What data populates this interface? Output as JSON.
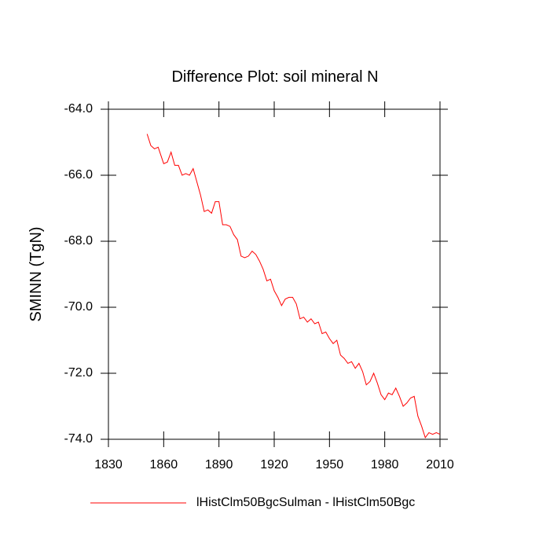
{
  "chart_data": {
    "type": "line",
    "title": "Difference Plot: soil mineral N",
    "y_label": "SMINN  (TgN)",
    "x": [
      1851,
      1853,
      1855,
      1857,
      1860,
      1862,
      1864,
      1866,
      1868,
      1870,
      1872,
      1874,
      1876,
      1878,
      1880,
      1882,
      1884,
      1886,
      1888,
      1890,
      1892,
      1894,
      1896,
      1898,
      1900,
      1902,
      1904,
      1906,
      1908,
      1910,
      1912,
      1914,
      1916,
      1918,
      1920,
      1922,
      1924,
      1926,
      1928,
      1930,
      1932,
      1934,
      1936,
      1938,
      1940,
      1942,
      1944,
      1946,
      1948,
      1950,
      1952,
      1954,
      1956,
      1958,
      1960,
      1962,
      1964,
      1966,
      1968,
      1970,
      1972,
      1974,
      1976,
      1978,
      1980,
      1982,
      1984,
      1986,
      1988,
      1990,
      1992,
      1994,
      1996,
      1998,
      2000,
      2002,
      2004,
      2006,
      2008,
      2010
    ],
    "series": [
      {
        "name": "lHistClm50BgcSulman - lHistClm50Bgc",
        "color": "#ff0000",
        "values": [
          -64.75,
          -65.1,
          -65.2,
          -65.15,
          -65.65,
          -65.6,
          -65.3,
          -65.7,
          -65.7,
          -66.0,
          -65.95,
          -66.0,
          -65.8,
          -66.2,
          -66.6,
          -67.1,
          -67.05,
          -67.15,
          -66.8,
          -66.8,
          -67.5,
          -67.5,
          -67.55,
          -67.8,
          -67.95,
          -68.45,
          -68.5,
          -68.45,
          -68.3,
          -68.4,
          -68.6,
          -68.85,
          -69.2,
          -69.15,
          -69.5,
          -69.7,
          -69.95,
          -69.75,
          -69.7,
          -69.7,
          -69.9,
          -70.35,
          -70.3,
          -70.45,
          -70.35,
          -70.5,
          -70.45,
          -70.8,
          -70.75,
          -70.95,
          -71.1,
          -71.0,
          -71.45,
          -71.55,
          -71.7,
          -71.65,
          -71.85,
          -71.7,
          -71.95,
          -72.35,
          -72.25,
          -72.0,
          -72.3,
          -72.65,
          -72.8,
          -72.6,
          -72.65,
          -72.45,
          -72.7,
          -73.0,
          -72.9,
          -72.75,
          -72.7,
          -73.3,
          -73.6,
          -73.95,
          -73.8,
          -73.85,
          -73.8,
          -73.85
        ]
      }
    ],
    "xlim": [
      1830,
      2010
    ],
    "xticks": [
      1830,
      1860,
      1890,
      1920,
      1950,
      1980,
      2010
    ],
    "ylim": [
      -74,
      -64
    ],
    "yticks": [
      {
        "value": -74,
        "label": "-74.0"
      },
      {
        "value": -72,
        "label": "-72.0"
      },
      {
        "value": -70,
        "label": "-70.0"
      },
      {
        "value": -68,
        "label": "-68.0"
      },
      {
        "value": -66,
        "label": "-66.0"
      },
      {
        "value": -64,
        "label": "-64.0"
      }
    ],
    "legend_position": "bottom"
  }
}
